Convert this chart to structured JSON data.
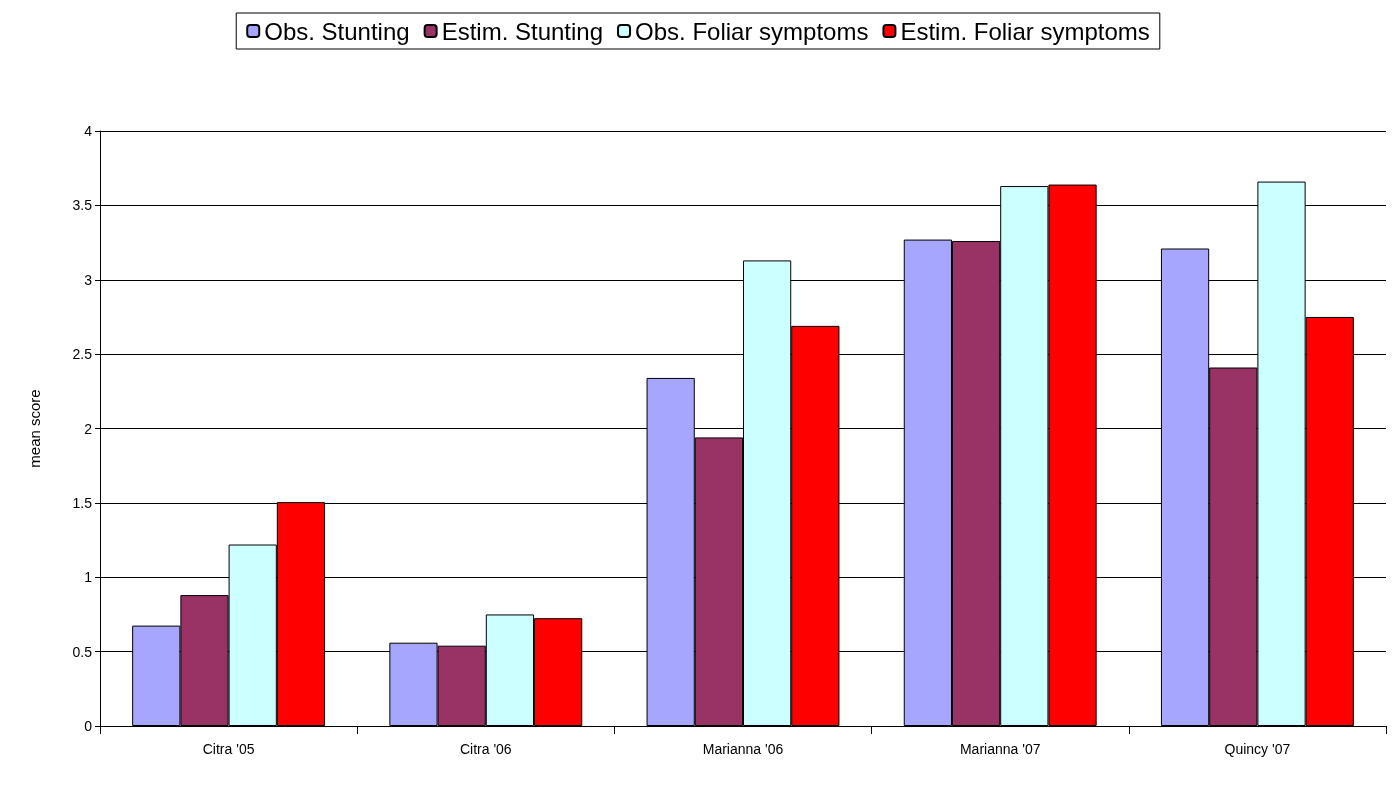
{
  "chart_data": {
    "type": "bar",
    "ylabel": "mean score",
    "categories": [
      "Citra '05",
      "Citra '06",
      "Marianna '06",
      "Marianna '07",
      "Quincy '07"
    ],
    "series": [
      {
        "name": "Obs. Stunting",
        "color": "#a6a6ff",
        "values": [
          0.675,
          0.56,
          2.34,
          3.27,
          3.21
        ]
      },
      {
        "name": "Estim. Stunting",
        "color": "#993366",
        "values": [
          0.88,
          0.54,
          1.94,
          3.26,
          2.41
        ]
      },
      {
        "name": "Obs. Foliar symptoms",
        "color": "#ccffff",
        "values": [
          1.22,
          0.75,
          3.13,
          3.63,
          3.66
        ]
      },
      {
        "name": "Estim. Foliar symptoms",
        "color": "#ff0000",
        "values": [
          1.505,
          0.725,
          2.69,
          3.64,
          2.75
        ]
      }
    ],
    "ylim": [
      0,
      4
    ],
    "yticks": [
      0,
      0.5,
      1,
      1.5,
      2,
      2.5,
      3,
      3.5,
      4
    ],
    "grid": "y",
    "legend": "top"
  }
}
